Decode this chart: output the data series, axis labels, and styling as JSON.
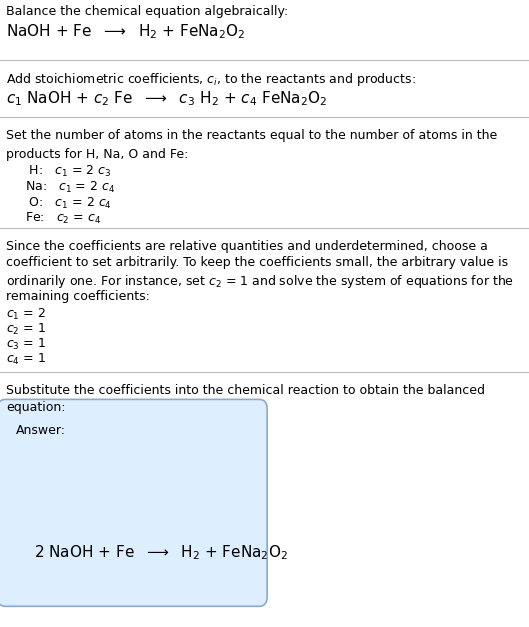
{
  "bg_color": "#ffffff",
  "text_color": "#000000",
  "box_fill_color": "#ddeeff",
  "box_edge_color": "#88aacc",
  "figsize": [
    5.29,
    6.27
  ],
  "dpi": 100,
  "sec1_title": "Balance the chemical equation algebraically:",
  "sec1_formula": "NaOH + Fe  $\\longrightarrow$  H$_2$ + FeNa$_2$O$_2$",
  "sec2_title": "Add stoichiometric coefficients, $c_i$, to the reactants and products:",
  "sec2_formula": "$c_1$ NaOH + $c_2$ Fe  $\\longrightarrow$  $c_3$ H$_2$ + $c_4$ FeNa$_2$O$_2$",
  "sec3_line1": "Set the number of atoms in the reactants equal to the number of atoms in the",
  "sec3_line2": "products for H, Na, O and Fe:",
  "sec3_equations": [
    " H:   $c_1$ = 2 $c_3$",
    "Na:   $c_1$ = 2 $c_4$",
    " O:   $c_1$ = 2 $c_4$",
    "Fe:   $c_2$ = $c_4$"
  ],
  "sec4_line1": "Since the coefficients are relative quantities and underdetermined, choose a",
  "sec4_line2": "coefficient to set arbitrarily. To keep the coefficients small, the arbitrary value is",
  "sec4_line3": "ordinarily one. For instance, set $c_2$ = 1 and solve the system of equations for the",
  "sec4_line4": "remaining coefficients:",
  "sec4_coeffs": [
    "$c_1$ = 2",
    "$c_2$ = 1",
    "$c_3$ = 1",
    "$c_4$ = 1"
  ],
  "sec5_line1": "Substitute the coefficients into the chemical reaction to obtain the balanced",
  "sec5_line2": "equation:",
  "answer_label": "Answer:",
  "answer_formula": "2 NaOH + Fe  $\\longrightarrow$  H$_2$ + FeNa$_2$O$_2$",
  "fs_body": 9.0,
  "fs_formula": 11.0,
  "fs_answer": 9.0,
  "font_body": "DejaVu Sans",
  "font_formula": "DejaVu Sans",
  "divider_color": "#bbbbbb",
  "divider_lw": 0.8
}
